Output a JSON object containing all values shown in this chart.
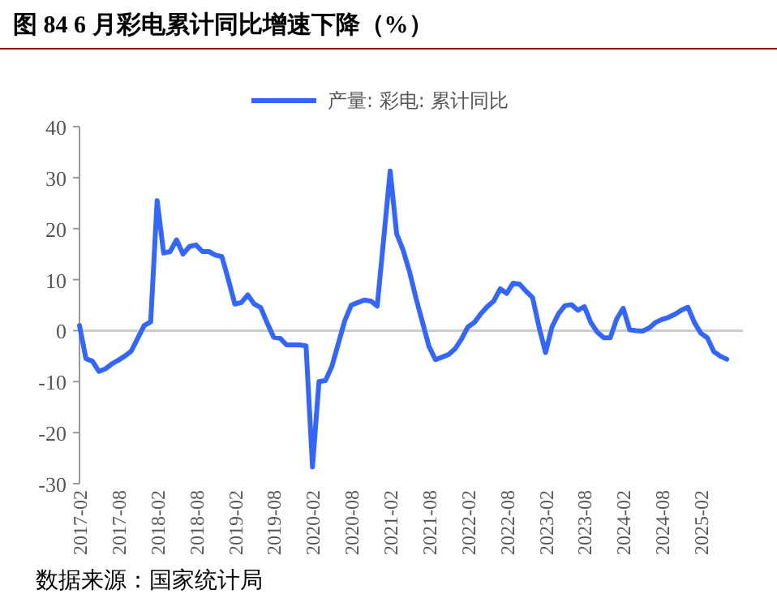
{
  "chart_data": {
    "type": "line",
    "title": "图 84 6 月彩电累计同比增速下降（%）",
    "categories": [
      "2017-02",
      null,
      null,
      null,
      null,
      null,
      "2017-08",
      null,
      null,
      null,
      null,
      null,
      "2018-02",
      null,
      null,
      null,
      null,
      null,
      "2018-08",
      null,
      null,
      null,
      null,
      null,
      "2019-02",
      null,
      null,
      null,
      null,
      null,
      "2019-08",
      null,
      null,
      null,
      null,
      null,
      "2020-02",
      null,
      null,
      null,
      null,
      null,
      "2020-08",
      null,
      null,
      null,
      null,
      null,
      "2021-02",
      null,
      null,
      null,
      null,
      null,
      "2021-08",
      null,
      null,
      null,
      null,
      null,
      "2022-02",
      null,
      null,
      null,
      null,
      null,
      "2022-08",
      null,
      null,
      null,
      null,
      null,
      "2023-02",
      null,
      null,
      null,
      null,
      null,
      "2023-08",
      null,
      null,
      null,
      null,
      null,
      "2024-02",
      null,
      null,
      null,
      null,
      null,
      "2024-08",
      null,
      null,
      null,
      null,
      null,
      "2025-02",
      null,
      null,
      null,
      null
    ],
    "series": [
      {
        "name": "产量: 彩电: 累计同比",
        "color": "#3366ff",
        "values": [
          1.0,
          -5.5,
          -6,
          -8,
          -7.5,
          -6.5,
          -5.8,
          -5,
          -4,
          -1.5,
          1,
          1.7,
          25.5,
          15.2,
          15.5,
          17.8,
          15,
          16.5,
          16.8,
          15.5,
          15.5,
          14.8,
          14.5,
          10,
          5.2,
          5.5,
          7,
          5.2,
          4.5,
          1.5,
          -1.3,
          -1.5,
          -2.8,
          -2.8,
          -2.8,
          -3,
          -26.7,
          -10,
          -9.8,
          -7,
          -2.5,
          2,
          5,
          5.5,
          6,
          5.8,
          4.8,
          18,
          31.3,
          19,
          15.8,
          11.5,
          6.3,
          1.6,
          -3.1,
          -5.7,
          -5.2,
          -4.7,
          -3.6,
          -1.7,
          0.7,
          1.6,
          3.3,
          4.7,
          5.8,
          8.2,
          7.3,
          9.3,
          9.1,
          7.7,
          6.5,
          0.7,
          -4.3,
          0.7,
          3.3,
          4.9,
          5.1,
          4,
          4.7,
          1.6,
          -0.3,
          -1.4,
          -1.4,
          2.3,
          4.4,
          0.2,
          0,
          -0.1,
          0.5,
          1.6,
          2.2,
          2.6,
          3.2,
          4,
          4.6,
          1.6,
          -0.5,
          -1.4,
          -4.1,
          -5,
          -5.6
        ]
      }
    ],
    "ylim": [
      -30,
      40
    ],
    "yticks": [
      -30,
      -20,
      -10,
      0,
      10,
      20,
      30,
      40
    ],
    "legend": "top",
    "marker": "none",
    "line_style": "solid",
    "annotations": [
      "数据来源：国家统计局"
    ]
  }
}
